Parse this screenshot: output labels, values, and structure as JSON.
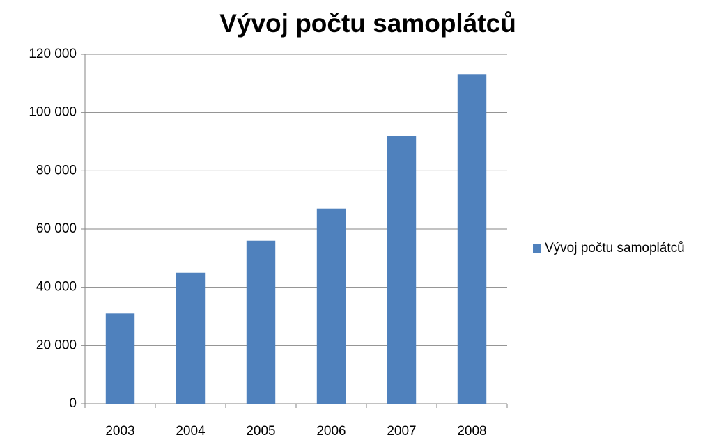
{
  "chart_data": {
    "type": "bar",
    "title": "Vývoj počtu samoplátců",
    "categories": [
      "2003",
      "2004",
      "2005",
      "2006",
      "2007",
      "2008"
    ],
    "series": [
      {
        "name": "Vývoj počtu samoplátců",
        "color": "#4f81bd",
        "values": [
          31000,
          45000,
          56000,
          67000,
          92000,
          113000
        ]
      }
    ],
    "ylim": [
      0,
      120000
    ],
    "yticks": [
      0,
      {
        "value": 20000,
        "label": "20 000"
      },
      {
        "value": 40000,
        "label": "40 000"
      },
      {
        "value": 60000,
        "label": "60 000"
      },
      {
        "value": 80000,
        "label": "80 000"
      },
      {
        "value": 100000,
        "label": "100 000"
      },
      {
        "value": 120000,
        "label": "120 000"
      }
    ],
    "grid": true,
    "legend": "right"
  }
}
